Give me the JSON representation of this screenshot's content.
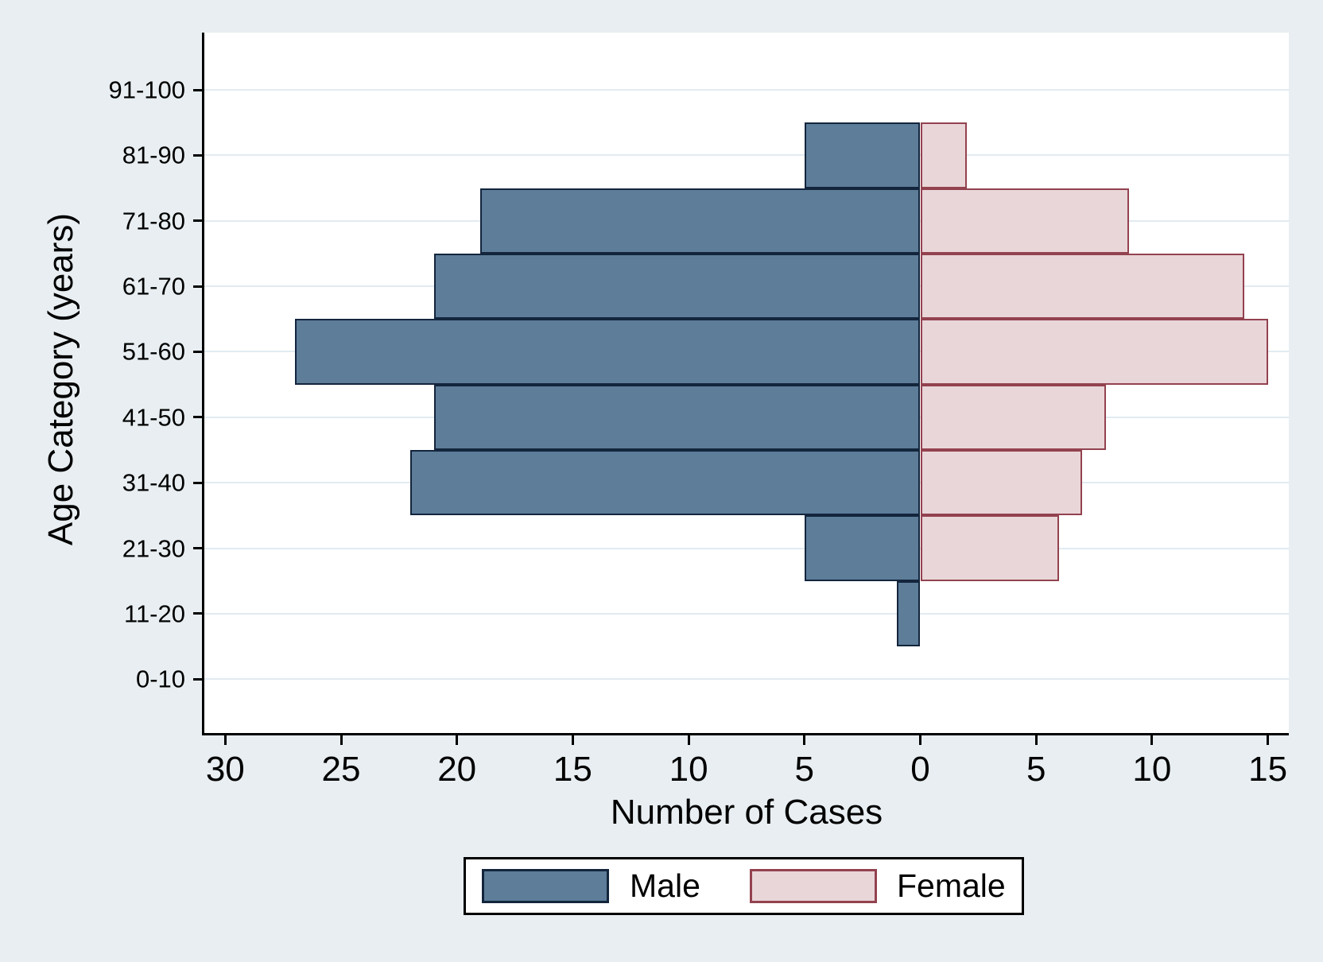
{
  "colors": {
    "background": "#e8eef1",
    "plot_background": "#ffffff",
    "gridline": "#e2ebf1",
    "axis": "#000000",
    "text": "#000000",
    "male_fill": "#5d7d99",
    "male_border": "#13253c",
    "female_fill": "#e9d6d9",
    "female_border": "#93424f",
    "legend_background": "#ffffff",
    "legend_border": "#000000"
  },
  "chart_data": {
    "type": "bar",
    "subtype": "population-pyramid",
    "orientation": "horizontal",
    "title": "",
    "xlabel": "Number of Cases",
    "ylabel": "Age Category (years)",
    "categories": [
      "0-10",
      "11-20",
      "21-30",
      "31-40",
      "41-50",
      "51-60",
      "61-70",
      "71-80",
      "81-90",
      "91-100"
    ],
    "series": [
      {
        "name": "Male",
        "side": "left",
        "values": [
          0,
          1,
          5,
          22,
          21,
          27,
          21,
          19,
          5,
          0
        ]
      },
      {
        "name": "Female",
        "side": "right",
        "values": [
          0,
          0,
          6,
          7,
          8,
          15,
          14,
          9,
          2,
          0
        ]
      }
    ],
    "x_ticks": [
      {
        "label": "30",
        "value": -30
      },
      {
        "label": "25",
        "value": -25
      },
      {
        "label": "20",
        "value": -20
      },
      {
        "label": "15",
        "value": -15
      },
      {
        "label": "10",
        "value": -10
      },
      {
        "label": "5",
        "value": -5
      },
      {
        "label": "0",
        "value": 0
      },
      {
        "label": "5",
        "value": 5
      },
      {
        "label": "10",
        "value": 10
      },
      {
        "label": "15",
        "value": 15
      }
    ],
    "x_axis_range": {
      "left_max": 30,
      "right_max": 15
    },
    "grid": true,
    "legend_position": "bottom",
    "legend_entries": [
      "Male",
      "Female"
    ]
  }
}
